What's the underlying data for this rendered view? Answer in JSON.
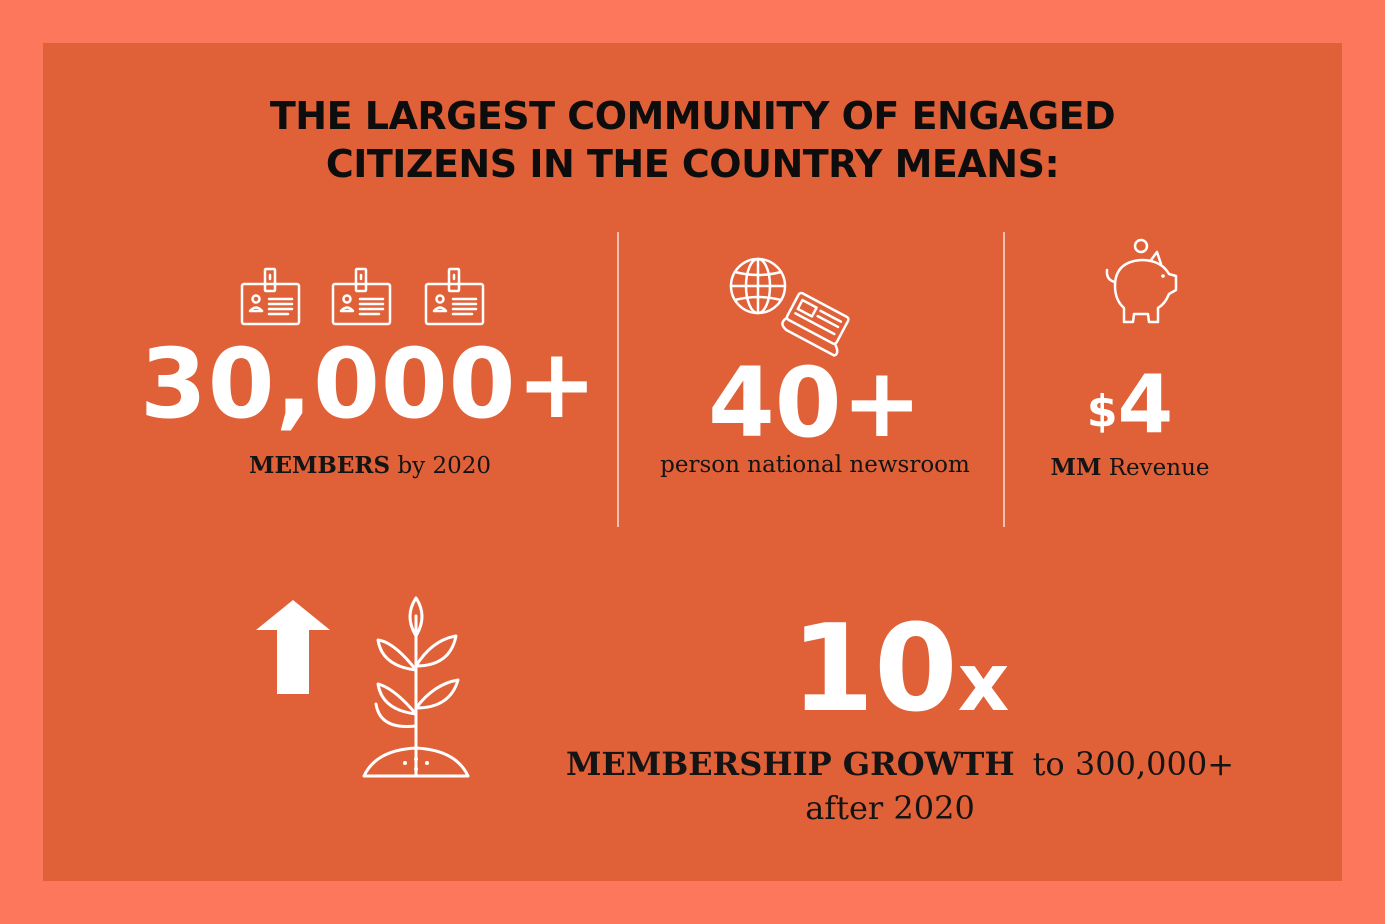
{
  "headline": {
    "line1": "THE LARGEST COMMUNITY OF ENGAGED",
    "line2": "CITIZENS IN THE COUNTRY MEANS:"
  },
  "stats": {
    "members": {
      "value": "30,000+",
      "label_bold": "MEMBERS",
      "label_rest": " by 2020",
      "icon": "id-badge-icon"
    },
    "newsroom": {
      "value": "40+",
      "label": "person national newsroom",
      "icon": "globe-newspaper-icon"
    },
    "revenue": {
      "currency": "$",
      "value": "4",
      "label_bold": "MM",
      "label_rest": " Revenue",
      "icon": "piggy-bank-icon"
    }
  },
  "growth": {
    "value": "10",
    "suffix": "x",
    "label_bold": "MEMBERSHIP GROWTH",
    "label_rest": "to 300,000+",
    "label_line2": "after 2020",
    "icons": [
      "up-arrow-icon",
      "sprout-icon"
    ]
  },
  "colors": {
    "frame": "#fd775c",
    "panel": "#e06038",
    "text_dark": "#0d0d0d",
    "text_light": "#ffffff"
  }
}
